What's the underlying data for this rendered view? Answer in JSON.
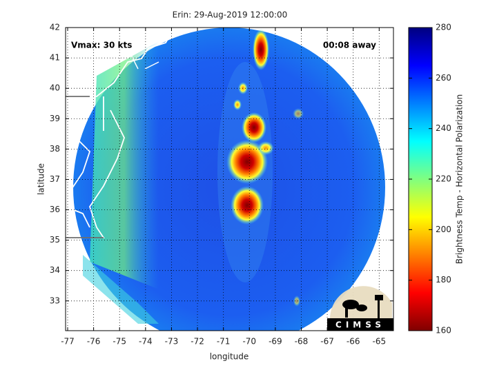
{
  "chart_data": {
    "type": "heatmap",
    "title": "Erin: 29-Aug-2019 12:00:00",
    "annotations": [
      "Vmax: 30 kts",
      "00:08 away"
    ],
    "xlabel": "longitude",
    "ylabel": "latitude",
    "xlim": [
      -77.08,
      -64.45
    ],
    "ylim": [
      32.02,
      42
    ],
    "xticks": [
      -77,
      -76,
      -75,
      -74,
      -73,
      -72,
      -71,
      -70,
      -69,
      -68,
      -67,
      -66,
      -65
    ],
    "yticks": [
      33,
      34,
      35,
      36,
      37,
      38,
      39,
      40,
      41,
      42
    ],
    "grid": true,
    "colorbar": {
      "label": "Brightness Temp - Horizontal Polarization",
      "lim": [
        160,
        280
      ],
      "ticks": [
        160,
        180,
        200,
        220,
        240,
        260,
        280
      ]
    },
    "logo": "CIMSS"
  }
}
